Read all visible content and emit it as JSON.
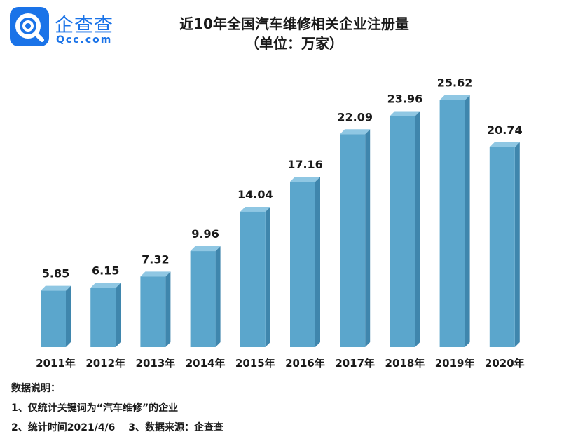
{
  "logo": {
    "cn": "企查查",
    "en": "Qcc.com"
  },
  "title": {
    "line1": "近10年全国汽车维修相关企业注册量",
    "line2": "（单位：万家）"
  },
  "chart_data": {
    "type": "bar",
    "categories": [
      "2011年",
      "2012年",
      "2013年",
      "2014年",
      "2015年",
      "2016年",
      "2017年",
      "2018年",
      "2019年",
      "2020年"
    ],
    "values": [
      5.85,
      6.15,
      7.32,
      9.96,
      14.04,
      17.16,
      22.09,
      23.96,
      25.62,
      20.74
    ],
    "value_labels": [
      "5.85",
      "6.15",
      "7.32",
      "9.96",
      "14.04",
      "17.16",
      "22.09",
      "23.96",
      "25.62",
      "20.74"
    ],
    "title": "近10年全国汽车维修相关企业注册量",
    "ylabel": "",
    "xlabel": "",
    "ylim": [
      0,
      28
    ],
    "grid": false,
    "bar_color": "#5ba6cc",
    "bar_side_color": "#3f86ad",
    "bar_top_color": "#8fc7e3"
  },
  "notes": {
    "heading": "数据说明：",
    "item1": "1、仅统计关键词为“汽车维修”的企业",
    "item2": "2、统计时间2021/4/6",
    "item3": "3、数据来源：企查查"
  }
}
